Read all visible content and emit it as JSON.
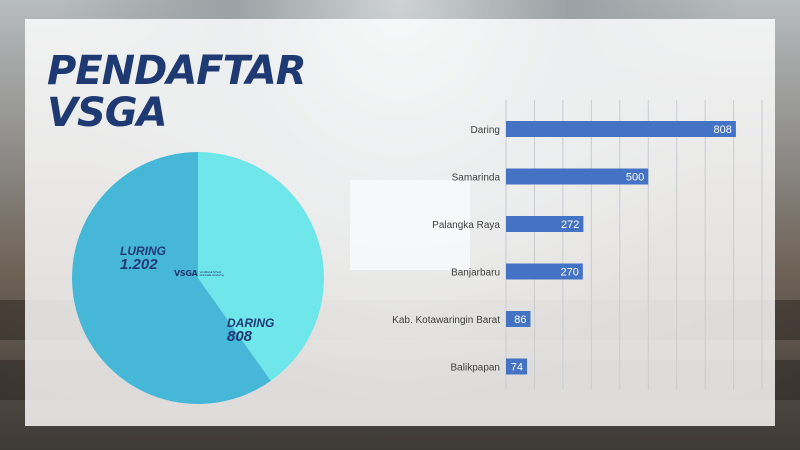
{
  "title_line1": "PENDAFTAR",
  "title_line2": "VSGA",
  "logo_text": "VSGA",
  "logo_subtext": "Vocational School Graduate Academy",
  "colors": {
    "title": "#1f3a73",
    "pie_daring": "#6ee6ea",
    "pie_luring": "#47b7d8",
    "bar": "#4472c4",
    "bar_label": "#ffffff"
  },
  "chart_data": [
    {
      "type": "pie",
      "slices": [
        {
          "label": "DARING",
          "value": 808,
          "display": "808"
        },
        {
          "label": "LURING",
          "value": 1202,
          "display": "1.202"
        }
      ]
    },
    {
      "type": "bar",
      "orientation": "horizontal",
      "categories": [
        "Daring",
        "Samarinda",
        "Palangka Raya",
        "Banjarbaru",
        "Kab. Kotawaringin Barat",
        "Balikpapan"
      ],
      "values": [
        808,
        500,
        272,
        270,
        86,
        74
      ],
      "xlim": [
        0,
        900
      ],
      "grid": true,
      "data_labels": true
    }
  ]
}
